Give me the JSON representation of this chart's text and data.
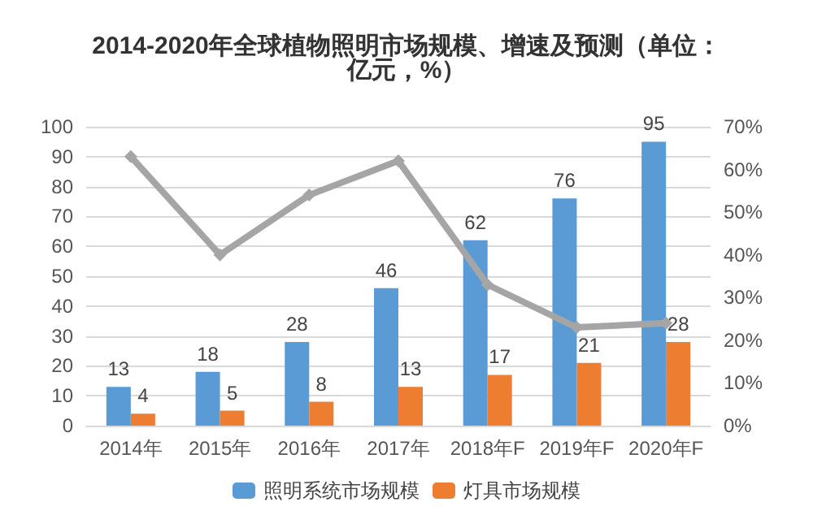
{
  "chart_data": {
    "type": "bar",
    "title": "2014-2020年全球植物照明市场规模、增速及预测（单位：亿元，%）",
    "categories": [
      "2014年",
      "2015年",
      "2016年",
      "2017年",
      "2018年F",
      "2019年F",
      "2020年F"
    ],
    "series": [
      {
        "name": "照明系统市场规模",
        "color": "#5b9bd5",
        "values": [
          13,
          18,
          28,
          46,
          62,
          76,
          95
        ],
        "value_labels": [
          "13",
          "18",
          "28",
          "46",
          "62",
          "76",
          "95"
        ]
      },
      {
        "name": "灯具市场规模",
        "color": "#ed7d31",
        "values": [
          4,
          5,
          8,
          13,
          17,
          21,
          28
        ],
        "value_labels": [
          "4",
          "5",
          "8",
          "13",
          "17",
          "21",
          "28"
        ]
      },
      {
        "type": "line",
        "axis": "y2",
        "color": "#a5a5a5",
        "values": [
          63,
          40,
          54,
          62,
          33,
          23,
          24
        ]
      }
    ],
    "ylim": [
      0,
      100
    ],
    "yticks": [
      0,
      10,
      20,
      30,
      40,
      50,
      60,
      70,
      80,
      90,
      100
    ],
    "y2lim": [
      0,
      70
    ],
    "y2ticks": [
      {
        "value": 0,
        "label": "0%"
      },
      {
        "value": 10,
        "label": "10%"
      },
      {
        "value": 20,
        "label": "20%"
      },
      {
        "value": 30,
        "label": "30%"
      },
      {
        "value": 40,
        "label": "40%"
      },
      {
        "value": 50,
        "label": "50%"
      },
      {
        "value": 60,
        "label": "60%"
      },
      {
        "value": 70,
        "label": "70%"
      }
    ],
    "grid": "y",
    "legend": "bottom",
    "marker": "diamond",
    "line_style": "solid"
  }
}
